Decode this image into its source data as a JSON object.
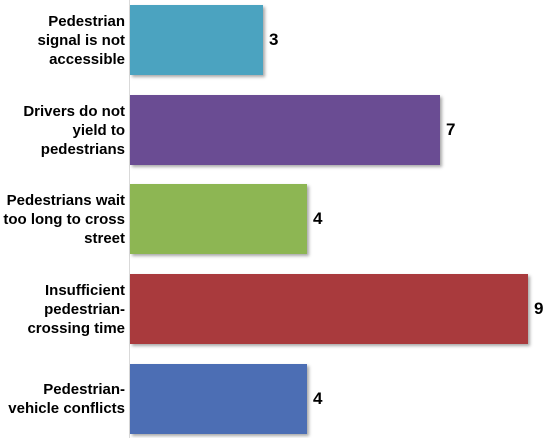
{
  "chart_data": {
    "type": "bar",
    "orientation": "horizontal",
    "categories": [
      "Pedestrian\nsignal is not\naccessible",
      "Drivers do not\nyield to\npedestrians",
      "Pedestrians wait\ntoo long to cross\nstreet",
      "Insufficient\npedestrian-\ncrossing time",
      "Pedestrian-\nvehicle conflicts"
    ],
    "values": [
      3,
      7,
      4,
      9,
      4
    ],
    "colors": [
      "#4BA3C0",
      "#6A4C93",
      "#8DB653",
      "#A93A3D",
      "#4C6EB4"
    ],
    "title": "",
    "xlabel": "",
    "ylabel": "",
    "xlim": [
      0,
      9
    ],
    "grid": false,
    "legend": "none",
    "data_labels": true
  }
}
